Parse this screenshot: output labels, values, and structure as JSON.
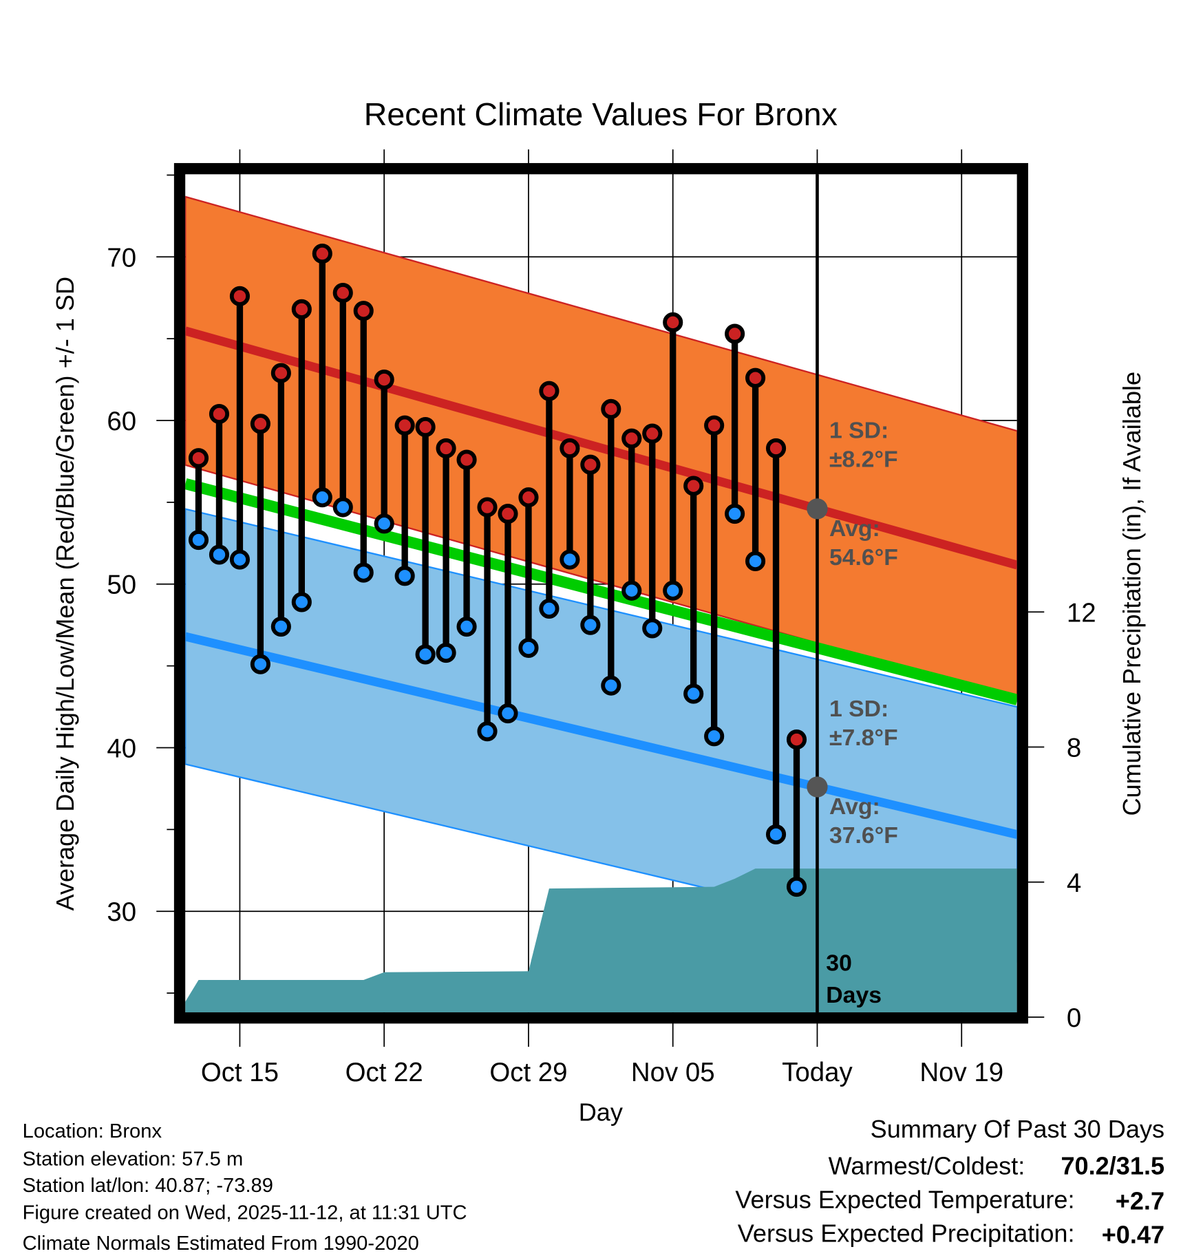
{
  "chart_data": {
    "type": "line",
    "title": "Recent Climate Values For Bronx",
    "xlabel": "Day",
    "ylabel": "Average Daily High/Low/Mean (Red/Blue/Green) +/- 1 SD",
    "y2label": "Cumulative Precipitation (in), If Available",
    "ylim": [
      23.8,
      75.0
    ],
    "y2lim": [
      0,
      24.9
    ],
    "x_ticks": [
      {
        "date": "2025-10-15",
        "label": "Oct 15"
      },
      {
        "date": "2025-10-22",
        "label": "Oct 22"
      },
      {
        "date": "2025-10-29",
        "label": "Oct 29"
      },
      {
        "date": "2025-11-05",
        "label": "Nov 05"
      },
      {
        "date": "2025-11-12",
        "label": "Today"
      },
      {
        "date": "2025-11-19",
        "label": "Nov 19"
      }
    ],
    "y_ticks": [
      30,
      40,
      50,
      60,
      70
    ],
    "y_minor_ticks": [
      25,
      35,
      45,
      55,
      65,
      75
    ],
    "y2_ticks": [
      0,
      4,
      8,
      12
    ],
    "grid": true,
    "today": "2025-11-12",
    "xlim_days_from_today": [
      -30.64,
      9.7
    ],
    "daily": {
      "start_date": "2025-10-13",
      "highs": [
        57.7,
        60.4,
        67.6,
        59.8,
        62.9,
        66.8,
        70.2,
        67.8,
        66.7,
        62.5,
        59.7,
        59.6,
        58.3,
        57.6,
        54.7,
        54.3,
        55.3,
        61.8,
        58.3,
        57.3,
        60.7,
        58.9,
        59.2,
        66.0,
        56.0,
        59.7,
        65.3,
        62.6,
        58.3,
        40.5
      ],
      "lows": [
        52.7,
        51.8,
        51.5,
        45.1,
        47.4,
        48.9,
        55.3,
        54.7,
        50.7,
        53.7,
        50.5,
        45.7,
        45.8,
        47.4,
        41.0,
        42.1,
        46.1,
        48.5,
        51.5,
        47.5,
        43.8,
        49.6,
        47.3,
        49.6,
        43.3,
        40.7,
        54.3,
        51.4,
        34.7,
        31.5
      ]
    },
    "normals": {
      "high": {
        "today_value": 54.6,
        "trend_per_day": -0.355,
        "sd": 8.2,
        "color": "#cc2222",
        "band_color": "#f47a30"
      },
      "low": {
        "today_value": 37.6,
        "trend_per_day": -0.3,
        "sd": 7.8,
        "color": "#1e90ff",
        "band_color": "#85c1e9"
      },
      "mean_color": "#00cc00"
    },
    "precipitation": {
      "color": "#4a9ba5",
      "points": [
        {
          "date": "2025-10-12",
          "value": 0.1
        },
        {
          "date": "2025-10-13",
          "value": 1.1
        },
        {
          "date": "2025-10-21",
          "value": 1.1
        },
        {
          "date": "2025-10-22",
          "value": 1.33
        },
        {
          "date": "2025-10-29",
          "value": 1.36
        },
        {
          "date": "2025-10-30",
          "value": 3.81
        },
        {
          "date": "2025-11-07",
          "value": 3.86
        },
        {
          "date": "2025-11-08",
          "value": 4.1
        },
        {
          "date": "2025-11-09",
          "value": 4.4
        },
        {
          "date": "2025-11-23",
          "value": 4.4
        }
      ]
    },
    "annotations": {
      "high_sd_label": "1 SD:",
      "high_sd_value": "±8.2°F",
      "high_avg_label": "Avg:",
      "high_avg_value": "54.6°F",
      "low_sd_label": "1 SD:",
      "low_sd_value": "±7.8°F",
      "low_avg_label": "Avg:",
      "low_avg_value": "37.6°F",
      "window_num": "30",
      "window_unit": "Days"
    }
  },
  "footer": {
    "location": "Location: Bronx",
    "elevation": "Station elevation: 57.5 m",
    "latlon": "Station lat/lon: 40.87; -73.89",
    "created": "Figure created on Wed, 2025-11-12, at 11:31 UTC",
    "normals": "Climate Normals Estimated From 1990-2020"
  },
  "summary": {
    "title": "Summary Of Past 30 Days",
    "warmest_label": "Warmest/Coldest:",
    "warmest_value": "70.2/31.5",
    "temp_label": "Versus Expected Temperature:",
    "temp_value": "+2.7",
    "temp_color": "#cc2222",
    "precip_label": "Versus Expected Precipitation:",
    "precip_value": "+0.47",
    "precip_color": "#00bb00"
  }
}
